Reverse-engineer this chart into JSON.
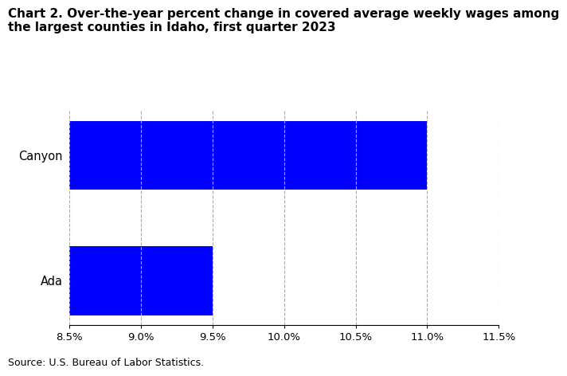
{
  "categories": [
    "Ada",
    "Canyon"
  ],
  "values": [
    0.095,
    0.11
  ],
  "bar_color": "#0000FF",
  "title_line1": "Chart 2. Over-the-year percent change in covered average weekly wages among",
  "title_line2": "the largest counties in Idaho, first quarter 2023",
  "xlim": [
    0.085,
    0.115
  ],
  "xticks": [
    0.085,
    0.09,
    0.095,
    0.1,
    0.105,
    0.11,
    0.115
  ],
  "xtick_labels": [
    "8.5%",
    "9.0%",
    "9.5%",
    "10.0%",
    "10.5%",
    "11.0%",
    "11.5%"
  ],
  "source": "Source: U.S. Bureau of Labor Statistics.",
  "grid_color": "#aaaaaa",
  "background_color": "#ffffff",
  "title_fontsize": 11,
  "tick_fontsize": 9.5,
  "source_fontsize": 9,
  "bar_height": 0.55
}
